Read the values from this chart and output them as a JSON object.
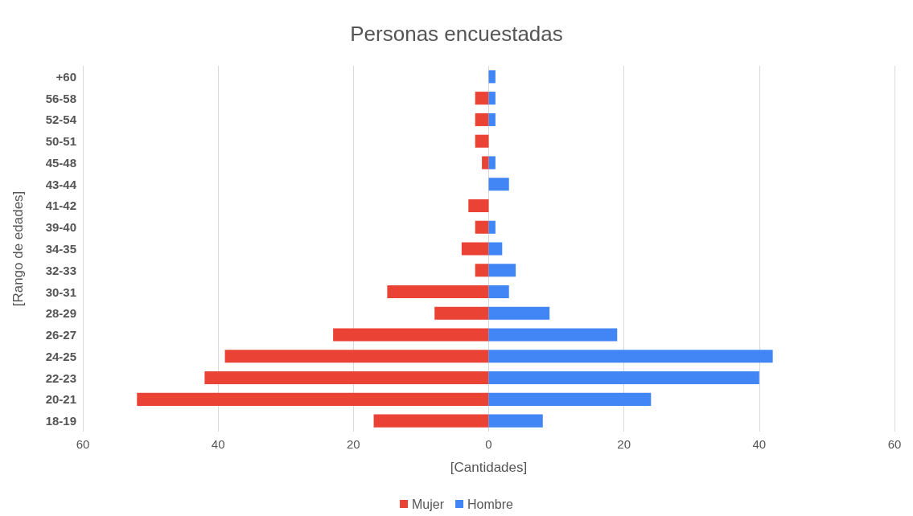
{
  "chart_data": {
    "type": "bar",
    "orientation": "horizontal",
    "stacked": true,
    "title": "Personas encuestadas",
    "xlabel": "[Cantidades]",
    "ylabel": "[Rango de edades]",
    "categories": [
      "+60",
      "56-58",
      "52-54",
      "50-51",
      "45-48",
      "43-44",
      "41-42",
      "39-40",
      "34-35",
      "32-33",
      "30-31",
      "28-29",
      "26-27",
      "24-25",
      "22-23",
      "20-21",
      "18-19"
    ],
    "series": [
      {
        "name": "Mujer",
        "color": "#ea4335",
        "values": [
          null,
          -2,
          -2,
          -2,
          -1,
          null,
          -3,
          -2,
          -4,
          -2,
          -15,
          -8,
          -23,
          -39,
          -42,
          -52,
          -17
        ]
      },
      {
        "name": "Hombre",
        "color": "#4285f4",
        "values": [
          1,
          1,
          1,
          null,
          1,
          3,
          null,
          1,
          2,
          4,
          3,
          9,
          19,
          42,
          40,
          24,
          8
        ]
      }
    ],
    "xlim": [
      -60,
      60
    ],
    "xticks": [
      {
        "value": -60,
        "label": "60"
      },
      {
        "value": -40,
        "label": "40"
      },
      {
        "value": -20,
        "label": "20"
      },
      0,
      20,
      40,
      60
    ],
    "grid": "x",
    "legend": "bottom"
  }
}
